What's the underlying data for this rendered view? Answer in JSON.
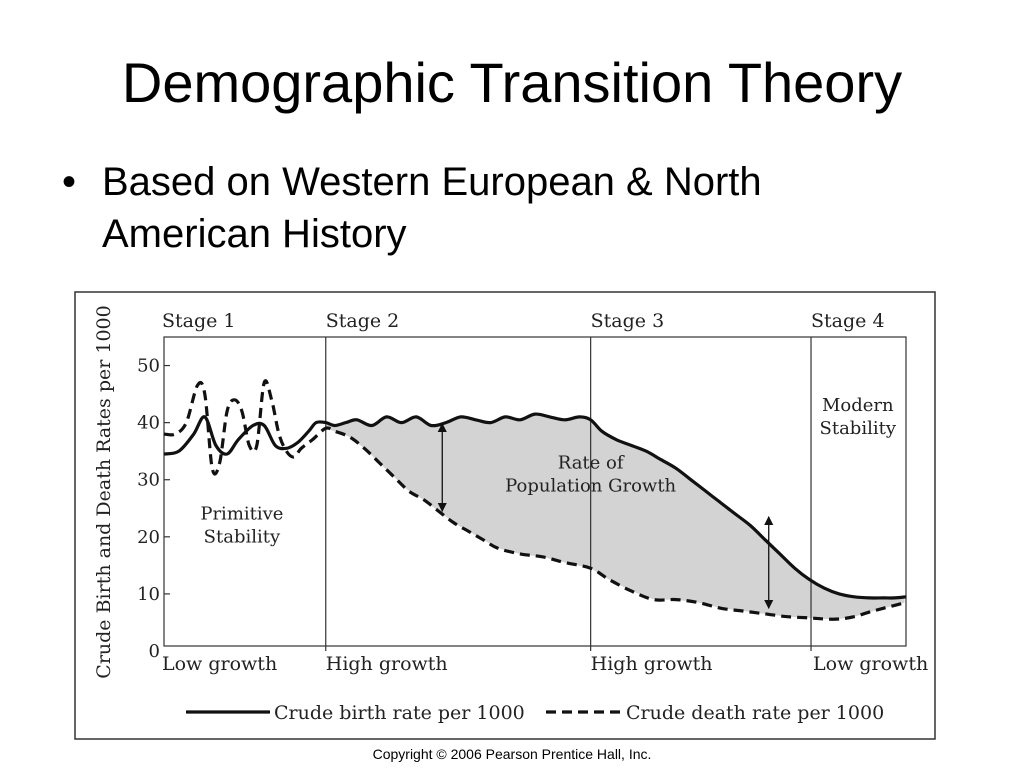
{
  "slide": {
    "title": "Demographic Transition Theory",
    "bullet_marker": "•",
    "bullet_text": "Based on Western European & North American History",
    "copyright": "Copyright © 2006 Pearson Prentice Hall, Inc."
  },
  "chart_data": {
    "type": "line",
    "ylabel": "Crude Birth and Death Rates per 1000",
    "ylim": [
      0,
      55
    ],
    "yticks": [
      0,
      10,
      20,
      30,
      40,
      50
    ],
    "xlim": [
      0,
      100
    ],
    "stages": [
      {
        "label": "Stage 1",
        "growth": "Low growth",
        "start": 0,
        "end": 21.8
      },
      {
        "label": "Stage 2",
        "growth": "High growth",
        "start": 21.8,
        "end": 57.5
      },
      {
        "label": "Stage 3",
        "growth": "High growth",
        "start": 57.5,
        "end": 87.2
      },
      {
        "label": "Stage 4",
        "growth": "Low growth",
        "start": 87.2,
        "end": 100
      }
    ],
    "annotations": [
      {
        "lines": [
          "Primitive",
          "Stability"
        ],
        "x": 10.5,
        "y": 23
      },
      {
        "lines": [
          "Rate of",
          "Population Growth"
        ],
        "x": 57.5,
        "y": 32
      },
      {
        "lines": [
          "Modern",
          "Stability"
        ],
        "x": 93.5,
        "y": 42
      }
    ],
    "growth_arrows": [
      {
        "x": 37.5,
        "y_top": 39.8,
        "y_bottom": 24.5
      },
      {
        "x": 81.5,
        "y_top": 23.5,
        "y_bottom": 7.5
      }
    ],
    "series": [
      {
        "name": "Crude birth rate per 1000",
        "style": "solid",
        "x": [
          0,
          2,
          4,
          5.5,
          7,
          8.5,
          10,
          12,
          13.5,
          15,
          16.5,
          18,
          19.5,
          20.5,
          21.8,
          23,
          24.5,
          26,
          28,
          30,
          32,
          34,
          36,
          38,
          40,
          42,
          44,
          46,
          48,
          50,
          52,
          54,
          56,
          57.5,
          59,
          61,
          63,
          65,
          67,
          69,
          71,
          73,
          75,
          77,
          79,
          81,
          83,
          85,
          87,
          89,
          91,
          93,
          95,
          97,
          98.5,
          100
        ],
        "y": [
          34.5,
          35,
          38,
          41,
          36,
          34.5,
          37,
          39.5,
          39.5,
          36,
          35.5,
          36.5,
          38.5,
          40,
          40,
          39.5,
          40,
          40.5,
          39.5,
          41,
          40,
          41,
          39.5,
          40,
          41,
          40.5,
          40,
          41,
          40.5,
          41.5,
          41,
          40.5,
          41,
          40.5,
          38.5,
          37,
          36,
          35,
          33.5,
          32,
          30,
          28,
          26,
          24,
          22,
          19.5,
          17,
          14.5,
          12.5,
          11,
          10,
          9.5,
          9.3,
          9.3,
          9.3,
          9.5
        ]
      },
      {
        "name": "Crude death rate per 1000",
        "style": "dashed",
        "x": [
          0,
          1.5,
          3,
          4.5,
          5.5,
          6.5,
          7.5,
          8.5,
          9.5,
          10.5,
          11.5,
          12.5,
          13.5,
          14.5,
          15.5,
          16.5,
          17.5,
          18.5,
          20,
          21.8,
          23,
          25,
          27,
          29,
          31,
          33,
          35,
          37,
          39,
          41,
          43,
          45,
          48,
          51,
          54,
          57.5,
          60,
          63,
          66,
          69,
          72,
          75,
          78,
          81,
          84,
          87,
          89,
          91,
          93,
          95,
          97,
          100
        ],
        "y": [
          38,
          38,
          40,
          46.5,
          45,
          32,
          33,
          42,
          44,
          42,
          36,
          36,
          47,
          44,
          38,
          35,
          34,
          35.5,
          37,
          39,
          38.5,
          37.5,
          35.5,
          33,
          30.5,
          28,
          26.5,
          24.5,
          22.5,
          21,
          19.5,
          18,
          17,
          16.5,
          15.5,
          14.5,
          12.5,
          10.5,
          9,
          9,
          8.5,
          7.5,
          7,
          6.5,
          6,
          5.8,
          5.6,
          5.6,
          6,
          6.8,
          7.5,
          8.5
        ]
      }
    ]
  }
}
